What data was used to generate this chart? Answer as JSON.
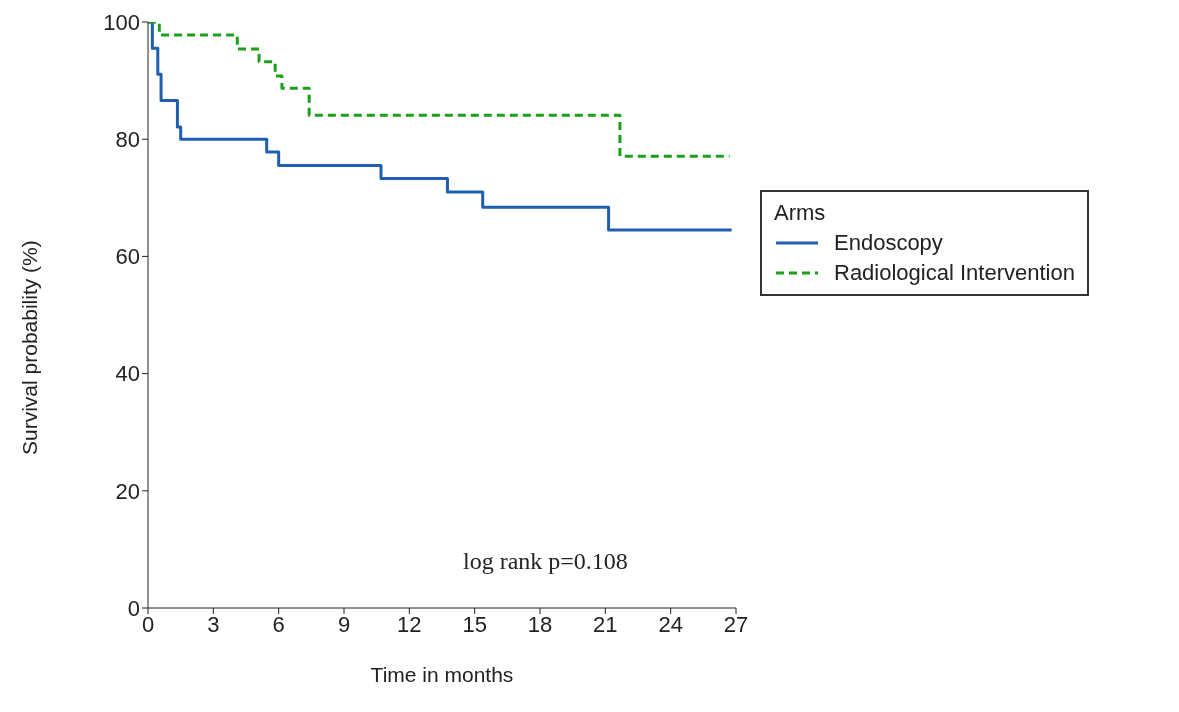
{
  "chart_data": {
    "type": "step",
    "xlabel": "Time in months",
    "ylabel": "Survival probability (%)",
    "legend_title": "Arms",
    "legend": "right",
    "grid": false,
    "xlim": [
      0,
      27
    ],
    "xticks": [
      0,
      3,
      6,
      9,
      12,
      15,
      18,
      21,
      24,
      27
    ],
    "ylim": [
      0,
      100
    ],
    "yticks": [
      0,
      20,
      40,
      60,
      80,
      100
    ],
    "annotations": [
      "log rank p=0.108"
    ],
    "series": [
      {
        "name": "Endoscopy",
        "color": "#1f5fb0",
        "line_style": "solid",
        "x": [
          0,
          0.2,
          0.45,
          0.6,
          1.35,
          1.5,
          5.45,
          6.0,
          10.7,
          13.75,
          15.37,
          21.15,
          26.8
        ],
        "values": [
          100,
          95.5,
          91.1,
          86.6,
          82.1,
          80,
          77.8,
          75.5,
          73.3,
          71.0,
          68.4,
          64.5,
          64.5
        ]
      },
      {
        "name": "Radiological Intervention",
        "color": "#1aa01a",
        "line_style": "dashed",
        "x": [
          0,
          0.52,
          4.1,
          5.1,
          5.84,
          6.15,
          7.4,
          21.67,
          26.7
        ],
        "values": [
          100,
          97.8,
          95.4,
          93.2,
          90.8,
          88.7,
          84.1,
          77.1,
          77.1
        ]
      }
    ]
  }
}
